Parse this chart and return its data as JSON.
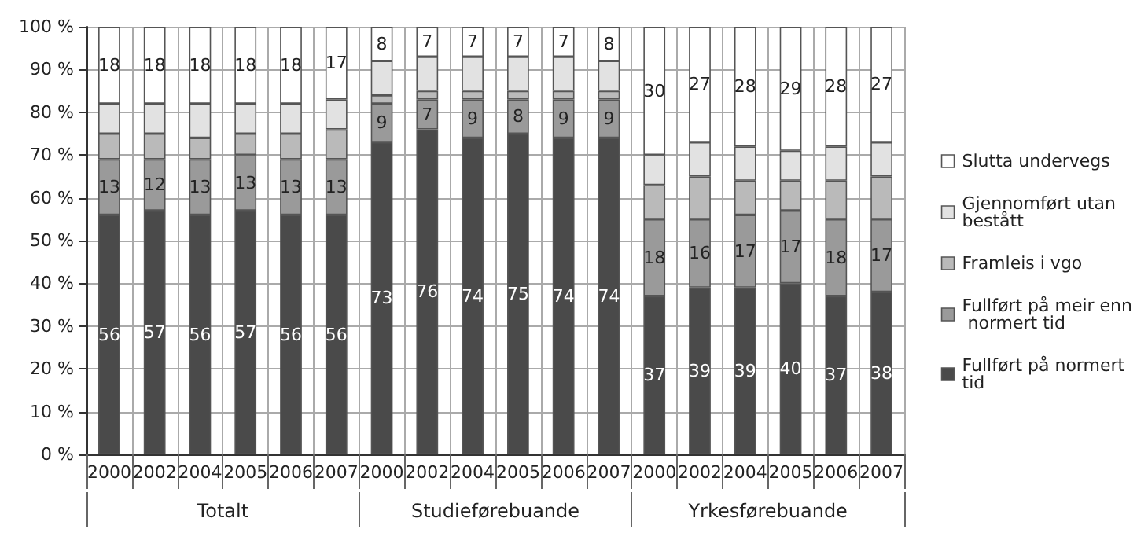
{
  "chart_data": {
    "type": "bar",
    "stacked": true,
    "categories": [
      "2000",
      "2002",
      "2004",
      "2005",
      "2006",
      "2007",
      "2000",
      "2002",
      "2004",
      "2005",
      "2006",
      "2007",
      "2000",
      "2002",
      "2004",
      "2005",
      "2006",
      "2007"
    ],
    "annotations": [
      "Totalt",
      "Studieførebuande",
      "Yrkesførebuande"
    ],
    "series": [
      {
        "name": "Fullført på normert tid",
        "color": "#4a4a4a",
        "values": [
          56,
          57,
          56,
          57,
          56,
          56,
          73,
          76,
          74,
          75,
          74,
          74,
          37,
          39,
          39,
          40,
          37,
          38
        ],
        "value_labels": [
          "56",
          "57",
          "56",
          "57",
          "56",
          "56",
          "73",
          "76",
          "74",
          "75",
          "74",
          "74",
          "37",
          "39",
          "39",
          "40",
          "37",
          "38"
        ]
      },
      {
        "name": "Fullført på meir enn normert tid",
        "color": "#9a9a9a",
        "values": [
          13,
          12,
          13,
          13,
          13,
          13,
          9,
          7,
          9,
          8,
          9,
          9,
          18,
          16,
          17,
          17,
          18,
          17
        ],
        "value_labels": [
          "13",
          "12",
          "13",
          "13",
          "13",
          "13",
          "9",
          "7",
          "9",
          "8",
          "9",
          "9",
          "18",
          "16",
          "17",
          "17",
          "18",
          "17"
        ]
      },
      {
        "name": "Framleis i vgo",
        "color": "#bababa",
        "values": [
          6,
          6,
          5,
          5,
          6,
          7,
          2,
          2,
          2,
          2,
          2,
          2,
          8,
          10,
          8,
          7,
          9,
          10
        ]
      },
      {
        "name": "Gjennomført utan bestått",
        "color": "#e2e2e2",
        "values": [
          7,
          7,
          8,
          7,
          7,
          7,
          8,
          8,
          8,
          8,
          8,
          7,
          7,
          8,
          8,
          7,
          8,
          8
        ]
      },
      {
        "name": "Slutta undervegs",
        "color": "#ffffff",
        "values": [
          18,
          18,
          18,
          18,
          18,
          17,
          8,
          7,
          7,
          7,
          7,
          8,
          30,
          27,
          28,
          29,
          28,
          27
        ],
        "value_labels": [
          "18",
          "18",
          "18",
          "18",
          "18",
          "17",
          "8",
          "7",
          "7",
          "7",
          "7",
          "8",
          "30",
          "27",
          "28",
          "29",
          "28",
          "27"
        ]
      }
    ],
    "ylim": [
      0,
      100
    ],
    "yticks": [
      {
        "value": 0,
        "label": "0 %"
      },
      {
        "value": 10,
        "label": "10 %"
      },
      {
        "value": 20,
        "label": "20 %"
      },
      {
        "value": 30,
        "label": "30 %"
      },
      {
        "value": 40,
        "label": "40 %"
      },
      {
        "value": 50,
        "label": "50 %"
      },
      {
        "value": 60,
        "label": "60 %"
      },
      {
        "value": 70,
        "label": "70 %"
      },
      {
        "value": 80,
        "label": "80 %"
      },
      {
        "value": 90,
        "label": "90 %"
      },
      {
        "value": 100,
        "label": "100 %"
      }
    ],
    "grid": true,
    "legend": "right"
  }
}
